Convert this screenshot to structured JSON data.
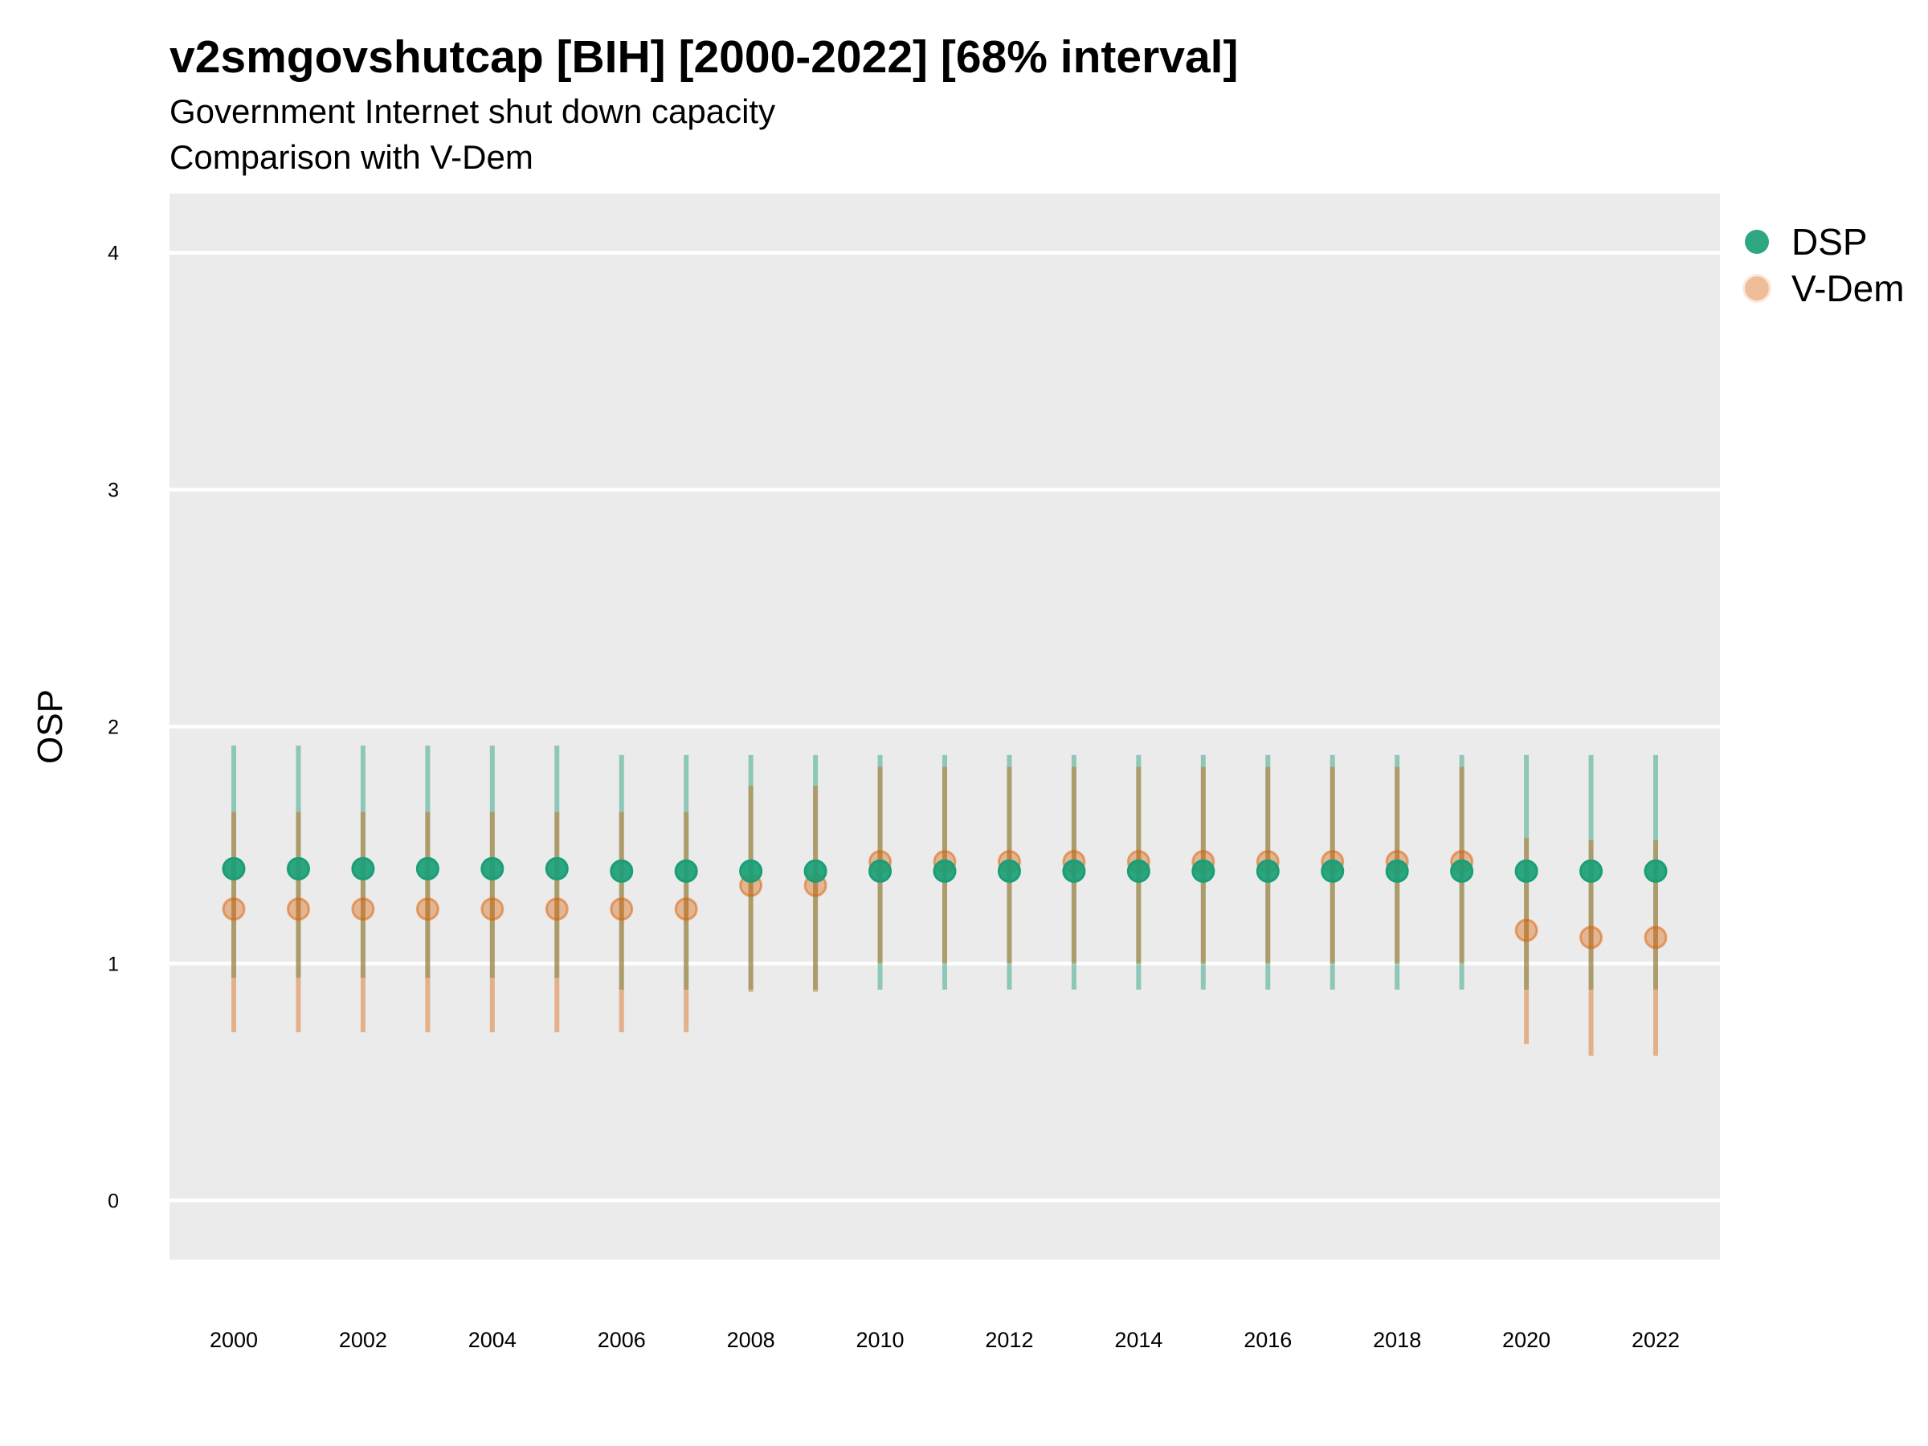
{
  "title": "v2smgovshutcap [BIH] [2000-2022] [68% interval]",
  "subtitle": "Government Internet shut down capacity",
  "subtitle2": "Comparison with V-Dem",
  "chart_data": {
    "type": "scatter",
    "subtype": "point-range (interval)",
    "ylabel": "OSP",
    "xlabel": "",
    "ylim": [
      -0.25,
      4.25
    ],
    "y_ticks": [
      0,
      1,
      2,
      3,
      4
    ],
    "x_ticks": [
      2000,
      2002,
      2004,
      2006,
      2008,
      2010,
      2012,
      2014,
      2016,
      2018,
      2020,
      2022
    ],
    "x": [
      2000,
      2001,
      2002,
      2003,
      2004,
      2005,
      2006,
      2007,
      2008,
      2009,
      2010,
      2011,
      2012,
      2013,
      2014,
      2015,
      2016,
      2017,
      2018,
      2019,
      2020,
      2021,
      2022
    ],
    "grid": true,
    "background": "#ebebeb",
    "legend_position": "right",
    "series": [
      {
        "name": "DSP",
        "color": "#1b9e77",
        "values": [
          1.4,
          1.4,
          1.4,
          1.4,
          1.4,
          1.4,
          1.39,
          1.39,
          1.39,
          1.39,
          1.39,
          1.39,
          1.39,
          1.39,
          1.39,
          1.39,
          1.39,
          1.39,
          1.39,
          1.39,
          1.39,
          1.39,
          1.39
        ],
        "lower": [
          0.94,
          0.94,
          0.94,
          0.94,
          0.94,
          0.94,
          0.89,
          0.89,
          0.89,
          0.89,
          0.89,
          0.89,
          0.89,
          0.89,
          0.89,
          0.89,
          0.89,
          0.89,
          0.89,
          0.89,
          0.89,
          0.89,
          0.89
        ],
        "upper": [
          1.92,
          1.92,
          1.92,
          1.92,
          1.92,
          1.92,
          1.88,
          1.88,
          1.88,
          1.88,
          1.88,
          1.88,
          1.88,
          1.88,
          1.88,
          1.88,
          1.88,
          1.88,
          1.88,
          1.88,
          1.88,
          1.88,
          1.88
        ]
      },
      {
        "name": "V-Dem",
        "color": "#d95f02",
        "values": [
          1.23,
          1.23,
          1.23,
          1.23,
          1.23,
          1.23,
          1.23,
          1.23,
          1.33,
          1.33,
          1.43,
          1.43,
          1.43,
          1.43,
          1.43,
          1.43,
          1.43,
          1.43,
          1.43,
          1.43,
          1.14,
          1.11,
          1.11
        ],
        "lower": [
          0.71,
          0.71,
          0.71,
          0.71,
          0.71,
          0.71,
          0.71,
          0.71,
          0.88,
          0.88,
          1.0,
          1.0,
          1.0,
          1.0,
          1.0,
          1.0,
          1.0,
          1.0,
          1.0,
          1.0,
          0.66,
          0.61,
          0.61
        ],
        "upper": [
          1.64,
          1.64,
          1.64,
          1.64,
          1.64,
          1.64,
          1.64,
          1.64,
          1.75,
          1.75,
          1.83,
          1.83,
          1.83,
          1.83,
          1.83,
          1.83,
          1.83,
          1.83,
          1.83,
          1.83,
          1.53,
          1.52,
          1.52
        ]
      }
    ]
  }
}
